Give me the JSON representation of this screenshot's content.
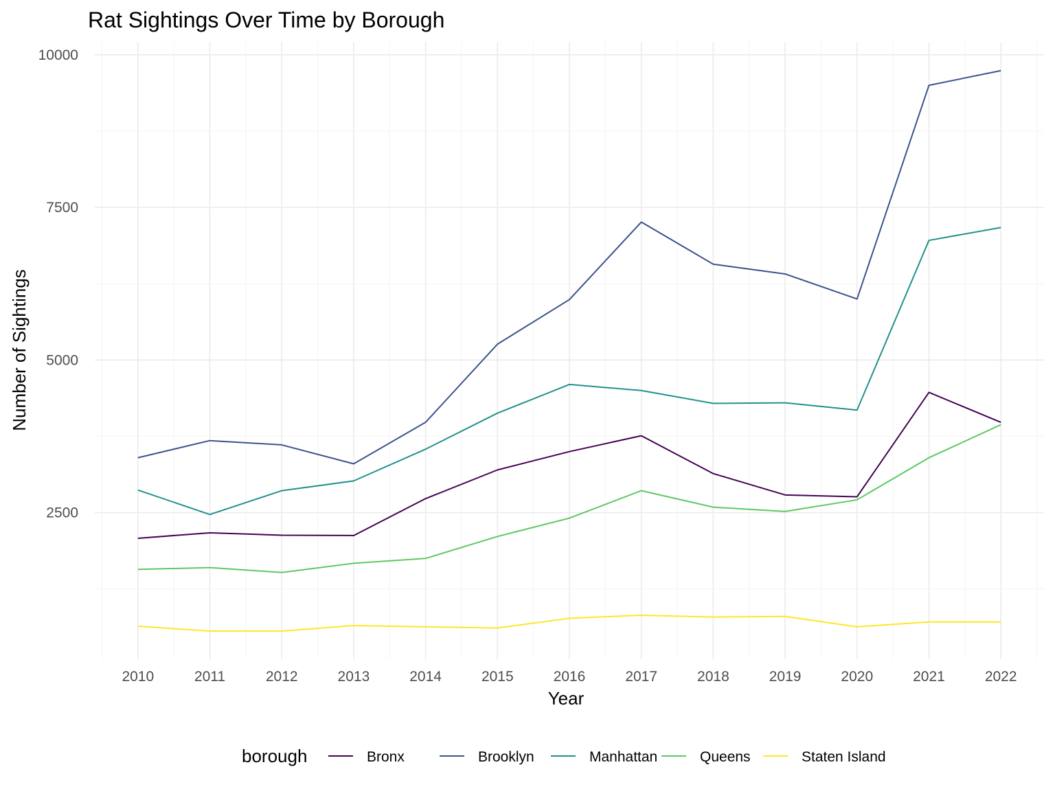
{
  "chart_data": {
    "type": "line",
    "title": "Rat Sightings Over Time by Borough",
    "xlabel": "Year",
    "ylabel": "Number of Sightings",
    "x": [
      2010,
      2011,
      2012,
      2013,
      2014,
      2015,
      2016,
      2017,
      2018,
      2019,
      2020,
      2021,
      2022
    ],
    "x_tick_labels": [
      "2010",
      "2011",
      "2012",
      "2013",
      "2014",
      "2015",
      "2016",
      "2017",
      "2018",
      "2019",
      "2020",
      "2021",
      "2022"
    ],
    "y_ticks": [
      2500,
      5000,
      7500,
      10000
    ],
    "y_tick_labels": [
      "2500",
      "5000",
      "7500",
      "10000"
    ],
    "xlim": [
      2009.4,
      2022.6
    ],
    "ylim": [
      100,
      10200
    ],
    "grid": true,
    "legend": {
      "title": "borough",
      "position": "bottom"
    },
    "series": [
      {
        "name": "Bronx",
        "color": "#440154",
        "values": [
          2080,
          2170,
          2130,
          2125,
          2730,
          3200,
          3500,
          3760,
          3140,
          2790,
          2760,
          4470,
          3980
        ]
      },
      {
        "name": "Brooklyn",
        "color": "#3b528b",
        "values": [
          3400,
          3680,
          3610,
          3300,
          3980,
          5260,
          5990,
          7260,
          6570,
          6410,
          6000,
          9500,
          9740
        ]
      },
      {
        "name": "Manhattan",
        "color": "#21908c",
        "values": [
          2870,
          2470,
          2860,
          3020,
          3540,
          4130,
          4600,
          4500,
          4290,
          4300,
          4180,
          6960,
          7170
        ]
      },
      {
        "name": "Queens",
        "color": "#5dc863",
        "values": [
          1570,
          1600,
          1520,
          1670,
          1750,
          2110,
          2410,
          2860,
          2590,
          2520,
          2710,
          3400,
          3940
        ]
      },
      {
        "name": "Staten Island",
        "color": "#fde725",
        "values": [
          640,
          560,
          560,
          650,
          630,
          610,
          770,
          820,
          790,
          800,
          630,
          710,
          710
        ]
      }
    ]
  }
}
